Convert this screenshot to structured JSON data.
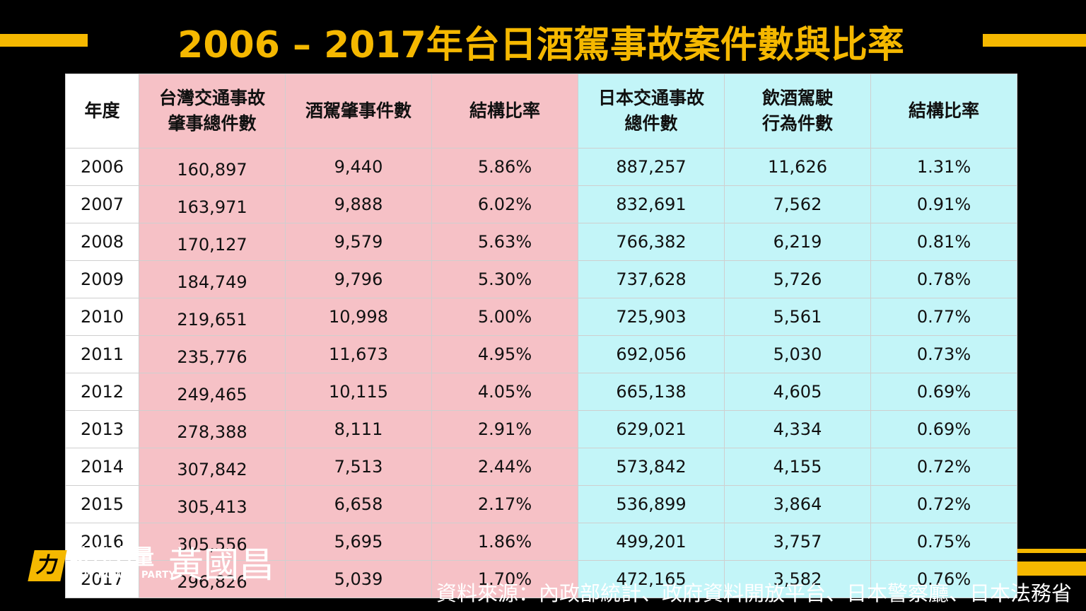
{
  "title": "2006 – 2017年台日酒駕事故案件數與比率",
  "chart_data": {
    "type": "table",
    "columns": [
      {
        "lines": [
          "年度"
        ]
      },
      {
        "lines": [
          "台灣交通事故",
          "肇事總件數"
        ]
      },
      {
        "lines": [
          "酒駕肇事件數"
        ]
      },
      {
        "lines": [
          "結構比率"
        ]
      },
      {
        "lines": [
          "日本交通事故",
          "總件數"
        ]
      },
      {
        "lines": [
          "飲酒駕駛",
          "行為件數"
        ]
      },
      {
        "lines": [
          "結構比率"
        ]
      }
    ],
    "rows": [
      [
        "2006",
        "160,897",
        "9,440",
        "5.86%",
        "887,257",
        "11,626",
        "1.31%"
      ],
      [
        "2007",
        "163,971",
        "9,888",
        "6.02%",
        "832,691",
        "7,562",
        "0.91%"
      ],
      [
        "2008",
        "170,127",
        "9,579",
        "5.63%",
        "766,382",
        "6,219",
        "0.81%"
      ],
      [
        "2009",
        "184,749",
        "9,796",
        "5.30%",
        "737,628",
        "5,726",
        "0.78%"
      ],
      [
        "2010",
        "219,651",
        "10,998",
        "5.00%",
        "725,903",
        "5,561",
        "0.77%"
      ],
      [
        "2011",
        "235,776",
        "11,673",
        "4.95%",
        "692,056",
        "5,030",
        "0.73%"
      ],
      [
        "2012",
        "249,465",
        "10,115",
        "4.05%",
        "665,138",
        "4,605",
        "0.69%"
      ],
      [
        "2013",
        "278,388",
        "8,111",
        "2.91%",
        "629,021",
        "4,334",
        "0.69%"
      ],
      [
        "2014",
        "307,842",
        "7,513",
        "2.44%",
        "573,842",
        "4,155",
        "0.72%"
      ],
      [
        "2015",
        "305,413",
        "6,658",
        "2.17%",
        "536,899",
        "3,864",
        "0.72%"
      ],
      [
        "2016",
        "305,556",
        "5,695",
        "1.86%",
        "499,201",
        "3,757",
        "0.75%"
      ],
      [
        "2017",
        "296,826",
        "5,039",
        "1.70%",
        "472,165",
        "3,582",
        "0.76%"
      ]
    ]
  },
  "colors": {
    "accent": "#f5b800",
    "taiwan_columns": "#f6c1c6",
    "japan_columns": "#c3f5f8",
    "year_column": "#ffffff"
  },
  "footer": {
    "logo_mark": "力",
    "party_name": "時代力量",
    "party_name_en": "NEW POWER PARTY",
    "person": "黃國昌",
    "source": "資料來源：內政部統計、政府資料開放平台、日本警察廳、日本法務省"
  }
}
